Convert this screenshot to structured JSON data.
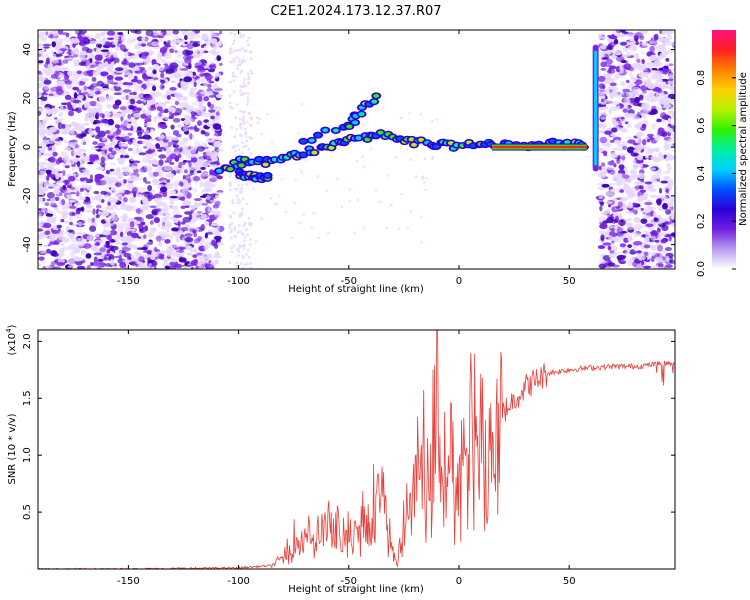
{
  "title": "C2E1.2024.173.12.37.R07",
  "colors": {
    "snr_line": "#e8403a",
    "spec_low": "#e6d6ff",
    "spec_mid": "#7a22e6",
    "spec_dark": "#3d00b8",
    "frame": "#000000"
  },
  "chart_data": [
    {
      "type": "heatmap",
      "title": "C2E1.2024.173.12.37.R07",
      "xlabel": "Height of straight line (km)",
      "ylabel": "Frequency (Hz)",
      "xlim": [
        -191,
        98
      ],
      "ylim": [
        -50,
        48
      ],
      "xticks": [
        -150,
        -100,
        -50,
        0,
        50
      ],
      "yticks": [
        -40,
        -20,
        0,
        20,
        40
      ],
      "grid": false,
      "colorbar": {
        "label": "Normalized spectral amplitude",
        "range": [
          0,
          1
        ],
        "ticks": [
          "0.0",
          "0.2",
          "0.4",
          "0.6",
          "0.8"
        ],
        "tick_values": [
          0,
          0.2,
          0.4,
          0.6,
          0.8
        ],
        "colors": [
          "#ffffff",
          "#b89cf0",
          "#6f1ee0",
          "#2a00d8",
          "#0050ff",
          "#00d0ff",
          "#00f0a0",
          "#30f000",
          "#b8f000",
          "#ffd000",
          "#ff8000",
          "#ff2020",
          "#ff1080"
        ]
      },
      "regions": {
        "noise_left": [
          -191,
          -108
        ],
        "noise_right": [
          64,
          98
        ]
      },
      "features": [
        {
          "name": "signal_trace",
          "x": [
            -108,
            -100,
            -90,
            -80,
            -70,
            -60,
            -50,
            -40,
            -30,
            -20,
            -10,
            0,
            10,
            20,
            30,
            40,
            50,
            58
          ],
          "y": [
            -10,
            -6,
            -6,
            -5,
            -2,
            0,
            2,
            5,
            4,
            2,
            1,
            0,
            1,
            1,
            1,
            1,
            1,
            1
          ]
        },
        {
          "name": "steady_tone",
          "x": [
            15,
            58
          ],
          "y": [
            0,
            0
          ]
        },
        {
          "name": "upper_branch",
          "x": [
            -70,
            -50,
            -45,
            -36
          ],
          "y": [
            3,
            8,
            15,
            22
          ]
        },
        {
          "name": "lower_branch",
          "x": [
            -100,
            -95,
            -90,
            -85
          ],
          "y": [
            -11,
            -11,
            -13,
            -12
          ]
        },
        {
          "name": "edge_spike",
          "x": [
            62,
            62
          ],
          "y": [
            -10,
            42
          ]
        }
      ]
    },
    {
      "type": "line",
      "xlabel": "Height of straight line (km)",
      "ylabel": "SNR (10 * v/v)",
      "multiplier": "(x10",
      "multiplier_exp": "4",
      "xlim": [
        -191,
        98
      ],
      "ylim": [
        0,
        2.1
      ],
      "xticks": [
        -150,
        -100,
        -50,
        0,
        50
      ],
      "yticks": [
        0.5,
        1.0,
        1.5,
        2.0
      ],
      "ytick_labels": [
        "0.5",
        "1.0",
        "1.5",
        "2.0"
      ],
      "grid": false,
      "series": [
        {
          "x": [
            -191,
            -150,
            -100,
            -85,
            -80,
            -75,
            -70,
            -65,
            -60,
            -55,
            -50,
            -45,
            -40,
            -37,
            -33,
            -30,
            -28,
            -25,
            -20,
            -15,
            -10,
            -5,
            0,
            5,
            10,
            20,
            30,
            40,
            50,
            60,
            70,
            80,
            90,
            95,
            98
          ],
          "y": [
            0.0,
            0.0,
            0.01,
            0.03,
            0.1,
            0.28,
            0.35,
            0.3,
            0.4,
            0.38,
            0.34,
            0.48,
            0.55,
            0.72,
            0.6,
            0.25,
            0.05,
            0.4,
            0.92,
            1.08,
            1.2,
            1.1,
            1.0,
            1.25,
            1.25,
            1.38,
            1.6,
            1.72,
            1.75,
            1.77,
            1.78,
            1.78,
            1.8,
            1.81,
            1.82
          ]
        }
      ]
    }
  ]
}
